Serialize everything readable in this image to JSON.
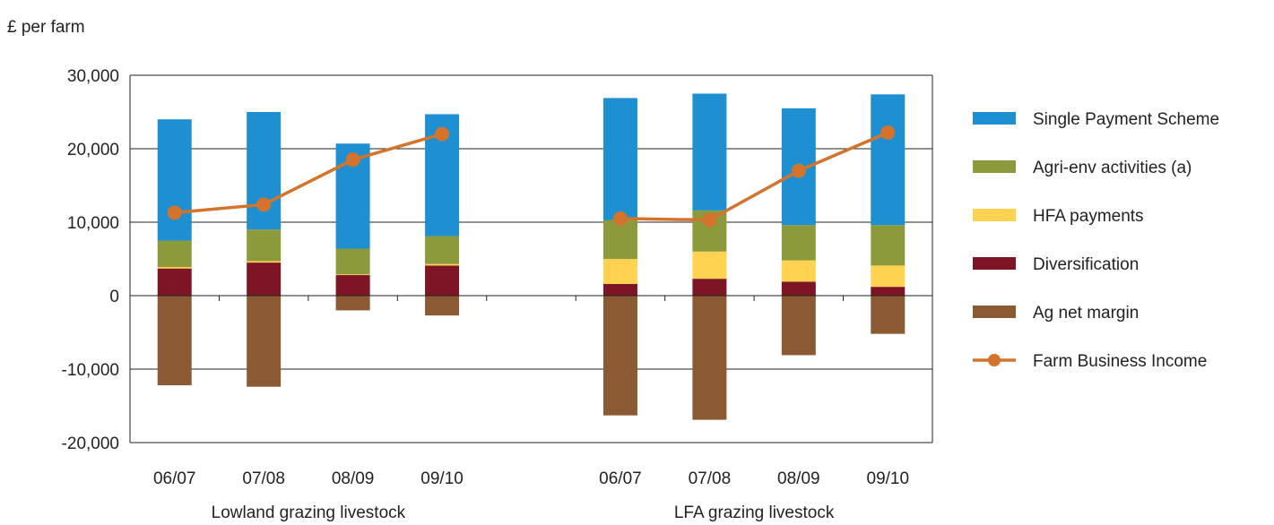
{
  "chart_data": {
    "type": "bar",
    "stacked": true,
    "units_label": "£ per farm",
    "ylim": [
      -20000,
      30000
    ],
    "y_ticks": [
      {
        "value": 30000,
        "label": "30,000"
      },
      {
        "value": 20000,
        "label": "20,000"
      },
      {
        "value": 10000,
        "label": "10,000"
      },
      {
        "value": 0,
        "label": "0"
      },
      {
        "value": -10000,
        "label": "-10,000"
      },
      {
        "value": -20000,
        "label": "-20,000"
      }
    ],
    "groups": [
      {
        "label": "Lowland grazing livestock",
        "categories": [
          "06/07",
          "07/08",
          "08/09",
          "09/10"
        ]
      },
      {
        "label": "LFA grazing livestock",
        "categories": [
          "06/07",
          "07/08",
          "08/09",
          "09/10"
        ]
      }
    ],
    "series": [
      {
        "name": "Single Payment Scheme",
        "type": "bar",
        "color": "#1e90d2",
        "values": [
          16500,
          16000,
          14300,
          16600,
          16600,
          15900,
          15900,
          17800
        ]
      },
      {
        "name": "Agri-env activities (a)",
        "type": "bar",
        "color": "#8c9a3c",
        "values": [
          3600,
          4300,
          3500,
          3800,
          5300,
          5600,
          4800,
          5500
        ]
      },
      {
        "name": "HFA payments",
        "type": "bar",
        "color": "#ffd34f",
        "values": [
          200,
          200,
          100,
          200,
          3400,
          3700,
          2900,
          2900
        ]
      },
      {
        "name": "Diversification",
        "type": "bar",
        "color": "#7d1526",
        "values": [
          3700,
          4500,
          2800,
          4100,
          1600,
          2300,
          1900,
          1200
        ]
      },
      {
        "name": "Ag net margin",
        "type": "bar",
        "color": "#8b5a33",
        "values": [
          -12200,
          -12400,
          -2000,
          -2700,
          -16300,
          -16900,
          -8100,
          -5200
        ]
      },
      {
        "name": "Farm Business Income",
        "type": "line",
        "color": "#d4742c",
        "values": [
          11300,
          12400,
          18500,
          22000,
          10500,
          10300,
          17000,
          22200
        ]
      }
    ]
  }
}
